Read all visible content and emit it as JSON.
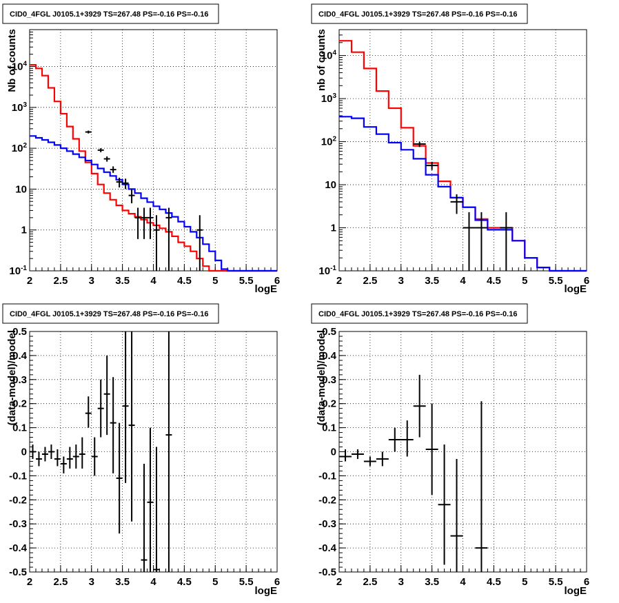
{
  "chart_data": [
    {
      "type": "line",
      "title": "CID0_4FGL J0105.1+3929 TS=267.48 PS=-0.16 PS=-0.16",
      "xlabel": "logE",
      "ylabel": "Nb of counts",
      "log_y": true,
      "xlim": [
        2,
        6
      ],
      "ylim": [
        0.1,
        80000
      ],
      "grid": true,
      "x_tick_labels": [
        "2",
        "2.5",
        "3",
        "3.5",
        "4",
        "4.5",
        "5",
        "5.5",
        "6"
      ],
      "y_tick_labels": [
        "10-1",
        "1",
        "10",
        "102",
        "103",
        "104"
      ],
      "bin_edges": [
        2.0,
        2.1,
        2.2,
        2.3,
        2.4,
        2.5,
        2.6,
        2.7,
        2.8,
        2.9,
        3.0,
        3.1,
        3.2,
        3.3,
        3.4,
        3.5,
        3.6,
        3.7,
        3.8,
        3.9,
        4.0,
        4.1,
        4.2,
        4.3,
        4.4,
        4.5,
        4.6,
        4.7,
        4.8,
        4.9,
        5.0,
        5.1,
        5.2,
        5.3,
        5.4,
        5.5,
        5.6,
        5.7,
        5.8,
        5.9,
        6.0
      ],
      "series": [
        {
          "color": "#ff0000",
          "values": [
            11000,
            9000,
            6000,
            3000,
            1400,
            700,
            340,
            170,
            85,
            45,
            24,
            13,
            8,
            5.5,
            4,
            3,
            2.5,
            2.1,
            1.8,
            1.5,
            1.3,
            1.1,
            0.9,
            0.7,
            0.5,
            0.4,
            0.3,
            0.2,
            0.13,
            0.1,
            0.1,
            0.1,
            0.1,
            0.1,
            0.1,
            0.1,
            0.1,
            0.1,
            0.1,
            0.1
          ]
        },
        {
          "color": "#0000ff",
          "values": [
            200,
            180,
            160,
            140,
            120,
            100,
            85,
            72,
            60,
            50,
            40,
            32,
            26,
            21,
            17,
            13,
            10,
            8,
            6,
            4.8,
            3.8,
            3.2,
            2.6,
            2.1,
            1.6,
            1.2,
            0.9,
            0.65,
            0.45,
            0.3,
            0.18,
            0.11,
            0.1,
            0.1,
            0.1,
            0.1,
            0.1,
            0.1,
            0.1,
            0.1
          ]
        }
      ],
      "points": [
        {
          "x": 2.95,
          "y": 250,
          "xerr": 0.05,
          "lo": 230,
          "hi": 270
        },
        {
          "x": 3.15,
          "y": 90,
          "xerr": 0.05,
          "lo": 80,
          "hi": 100
        },
        {
          "x": 3.25,
          "y": 55,
          "xerr": 0.05,
          "lo": 47,
          "hi": 63
        },
        {
          "x": 3.35,
          "y": 30,
          "xerr": 0.05,
          "lo": 25,
          "hi": 36
        },
        {
          "x": 3.45,
          "y": 15,
          "xerr": 0.05,
          "lo": 11,
          "hi": 19
        },
        {
          "x": 3.55,
          "y": 14,
          "xerr": 0.05,
          "lo": 10,
          "hi": 18
        },
        {
          "x": 3.65,
          "y": 7,
          "xerr": 0.05,
          "lo": 4.5,
          "hi": 10
        },
        {
          "x": 3.75,
          "y": 2,
          "xerr": 0.05,
          "lo": 0.6,
          "hi": 3.5
        },
        {
          "x": 3.85,
          "y": 2,
          "xerr": 0.05,
          "lo": 0.6,
          "hi": 3.5
        },
        {
          "x": 3.95,
          "y": 2,
          "xerr": 0.05,
          "lo": 0.6,
          "hi": 3.5
        },
        {
          "x": 4.05,
          "y": 1,
          "xerr": 0.05,
          "lo": 0.1,
          "hi": 2.3
        },
        {
          "x": 4.25,
          "y": 2,
          "xerr": 0.05,
          "lo": 0.1,
          "hi": 3.5
        },
        {
          "x": 4.75,
          "y": 1,
          "xerr": 0.05,
          "lo": 0.1,
          "hi": 2.3
        }
      ]
    },
    {
      "type": "line",
      "title": "CID0_4FGL J0105.1+3929 TS=267.48 PS=-0.16 PS=-0.16",
      "xlabel": "logE",
      "ylabel": "nb of counts",
      "log_y": true,
      "xlim": [
        2,
        6
      ],
      "ylim": [
        0.1,
        40000
      ],
      "grid": true,
      "x_tick_labels": [
        "2",
        "2.5",
        "3",
        "3.5",
        "4",
        "4.5",
        "5",
        "5.5",
        "6"
      ],
      "y_tick_labels": [
        "10-1",
        "1",
        "10",
        "102",
        "103",
        "104"
      ],
      "bin_edges": [
        2.0,
        2.2,
        2.4,
        2.6,
        2.8,
        3.0,
        3.2,
        3.4,
        3.6,
        3.8,
        4.0,
        4.2,
        4.4,
        4.6,
        4.8,
        5.0,
        5.2,
        5.4,
        5.6,
        5.8,
        6.0
      ],
      "series": [
        {
          "color": "#ff0000",
          "values": [
            22000,
            12000,
            5000,
            1500,
            600,
            210,
            80,
            32,
            12,
            5,
            3,
            1.6,
            1,
            1,
            0.5,
            0.2,
            0.12,
            0.1,
            0.1,
            0.1
          ]
        },
        {
          "color": "#0000ff",
          "values": [
            380,
            350,
            220,
            150,
            95,
            65,
            40,
            17,
            9,
            5,
            3,
            1.5,
            0.9,
            0.9,
            0.5,
            0.2,
            0.12,
            0.1,
            0.1,
            0.1
          ]
        }
      ],
      "points": [
        {
          "x": 3.3,
          "y": 88,
          "xerr": 0.1,
          "lo": 75,
          "hi": 100
        },
        {
          "x": 3.5,
          "y": 28,
          "xerr": 0.1,
          "lo": 22,
          "hi": 34
        },
        {
          "x": 3.9,
          "y": 4,
          "xerr": 0.1,
          "lo": 2.1,
          "hi": 6
        },
        {
          "x": 4.1,
          "y": 1,
          "xerr": 0.1,
          "lo": 0.1,
          "hi": 2.3
        },
        {
          "x": 4.3,
          "y": 1,
          "xerr": 0.1,
          "lo": 0.1,
          "hi": 2.3
        },
        {
          "x": 4.7,
          "y": 1,
          "xerr": 0.1,
          "lo": 0.1,
          "hi": 2.3
        }
      ]
    },
    {
      "type": "scatter",
      "title": "CID0_4FGL J0105.1+3929 TS=267.48 PS=-0.16 PS=-0.16",
      "xlabel": "logE",
      "ylabel": "(data-model)/model",
      "xlim": [
        2,
        6
      ],
      "ylim": [
        -0.5,
        0.5
      ],
      "grid": true,
      "x_tick_labels": [
        "2",
        "2.5",
        "3",
        "3.5",
        "4",
        "4.5",
        "5",
        "5.5",
        "6"
      ],
      "y_tick_labels": [
        "-0.5",
        "-0.4",
        "-0.3",
        "-0.2",
        "-0.1",
        "0",
        "0.1",
        "0.2",
        "0.3",
        "0.4",
        "0.5"
      ],
      "points": [
        {
          "x": 2.05,
          "y": 0.0,
          "xerr": 0.05,
          "lo": -0.03,
          "hi": 0.03
        },
        {
          "x": 2.15,
          "y": -0.03,
          "xerr": 0.05,
          "lo": -0.06,
          "hi": 0.0
        },
        {
          "x": 2.25,
          "y": -0.01,
          "xerr": 0.05,
          "lo": -0.04,
          "hi": 0.02
        },
        {
          "x": 2.35,
          "y": 0.0,
          "xerr": 0.05,
          "lo": -0.03,
          "hi": 0.03
        },
        {
          "x": 2.45,
          "y": -0.03,
          "xerr": 0.05,
          "lo": -0.06,
          "hi": 0.01
        },
        {
          "x": 2.55,
          "y": -0.05,
          "xerr": 0.05,
          "lo": -0.09,
          "hi": -0.02
        },
        {
          "x": 2.65,
          "y": -0.03,
          "xerr": 0.05,
          "lo": -0.07,
          "hi": 0.02
        },
        {
          "x": 2.75,
          "y": -0.02,
          "xerr": 0.05,
          "lo": -0.07,
          "hi": 0.03
        },
        {
          "x": 2.85,
          "y": -0.01,
          "xerr": 0.05,
          "lo": -0.07,
          "hi": 0.06
        },
        {
          "x": 2.95,
          "y": 0.16,
          "xerr": 0.05,
          "lo": 0.1,
          "hi": 0.23
        },
        {
          "x": 3.05,
          "y": -0.02,
          "xerr": 0.05,
          "lo": -0.1,
          "hi": 0.06
        },
        {
          "x": 3.15,
          "y": 0.18,
          "xerr": 0.05,
          "lo": 0.06,
          "hi": 0.3
        },
        {
          "x": 3.25,
          "y": 0.24,
          "xerr": 0.05,
          "lo": 0.07,
          "hi": 0.4
        },
        {
          "x": 3.35,
          "y": 0.12,
          "xerr": 0.05,
          "lo": -0.09,
          "hi": 0.31
        },
        {
          "x": 3.45,
          "y": -0.11,
          "xerr": 0.05,
          "lo": -0.34,
          "hi": 0.12
        },
        {
          "x": 3.55,
          "y": 0.19,
          "xerr": 0.05,
          "lo": -0.13,
          "hi": 0.5
        },
        {
          "x": 3.65,
          "y": 0.11,
          "xerr": 0.05,
          "lo": -0.29,
          "hi": 0.5
        },
        {
          "x": 3.85,
          "y": -0.45,
          "xerr": 0.05,
          "lo": -0.5,
          "hi": -0.05
        },
        {
          "x": 3.95,
          "y": -0.21,
          "xerr": 0.05,
          "lo": -0.5,
          "hi": 0.1
        },
        {
          "x": 4.05,
          "y": -0.49,
          "xerr": 0.05,
          "lo": -0.5,
          "hi": 0.02
        },
        {
          "x": 4.25,
          "y": 0.07,
          "xerr": 0.05,
          "lo": -0.5,
          "hi": 0.5
        }
      ]
    },
    {
      "type": "scatter",
      "title": "CID0_4FGL J0105.1+3929 TS=267.48 PS=-0.16 PS=-0.16",
      "xlabel": "logE",
      "ylabel": "(data-model)/model",
      "xlim": [
        2,
        6
      ],
      "ylim": [
        -0.5,
        0.5
      ],
      "grid": true,
      "x_tick_labels": [
        "2",
        "2.5",
        "3",
        "3.5",
        "4",
        "4.5",
        "5",
        "5.5",
        "6"
      ],
      "y_tick_labels": [
        "-0.5",
        "-0.4",
        "-0.3",
        "-0.2",
        "-0.1",
        "0",
        "0.1",
        "0.2",
        "0.3",
        "0.4",
        "0.5"
      ],
      "points": [
        {
          "x": 2.1,
          "y": -0.02,
          "xerr": 0.1,
          "lo": -0.04,
          "hi": 0.01
        },
        {
          "x": 2.3,
          "y": -0.01,
          "xerr": 0.1,
          "lo": -0.03,
          "hi": 0.01
        },
        {
          "x": 2.5,
          "y": -0.04,
          "xerr": 0.1,
          "lo": -0.06,
          "hi": -0.02
        },
        {
          "x": 2.7,
          "y": -0.03,
          "xerr": 0.1,
          "lo": -0.06,
          "hi": 0.0
        },
        {
          "x": 2.9,
          "y": 0.05,
          "xerr": 0.1,
          "lo": 0.0,
          "hi": 0.1
        },
        {
          "x": 3.1,
          "y": 0.05,
          "xerr": 0.1,
          "lo": -0.02,
          "hi": 0.13
        },
        {
          "x": 3.3,
          "y": 0.19,
          "xerr": 0.1,
          "lo": 0.06,
          "hi": 0.32
        },
        {
          "x": 3.5,
          "y": 0.01,
          "xerr": 0.1,
          "lo": -0.18,
          "hi": 0.2
        },
        {
          "x": 3.7,
          "y": -0.22,
          "xerr": 0.1,
          "lo": -0.47,
          "hi": 0.03
        },
        {
          "x": 3.9,
          "y": -0.35,
          "xerr": 0.1,
          "lo": -0.5,
          "hi": -0.03
        },
        {
          "x": 4.3,
          "y": -0.4,
          "xerr": 0.1,
          "lo": -0.5,
          "hi": 0.21
        }
      ]
    }
  ]
}
